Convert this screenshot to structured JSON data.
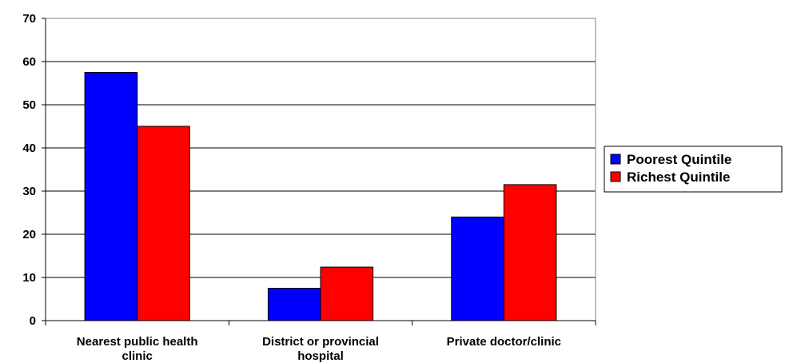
{
  "chart_data": {
    "type": "bar",
    "categories": [
      [
        "Nearest public health",
        "clinic"
      ],
      [
        "District or provincial",
        "hospital"
      ],
      [
        "Private doctor/clinic"
      ]
    ],
    "series": [
      {
        "name": "Poorest Quintile",
        "color": "#0000ff",
        "values": [
          57.5,
          7.5,
          24.0
        ]
      },
      {
        "name": "Richest Quintile",
        "color": "#ff0000",
        "values": [
          45.0,
          12.4,
          31.5
        ]
      }
    ],
    "ylim": [
      0,
      70
    ],
    "yticks": [
      0,
      10,
      20,
      30,
      40,
      50,
      60,
      70
    ],
    "grid": true,
    "legend_position": "right",
    "title": "",
    "xlabel": "",
    "ylabel": ""
  }
}
